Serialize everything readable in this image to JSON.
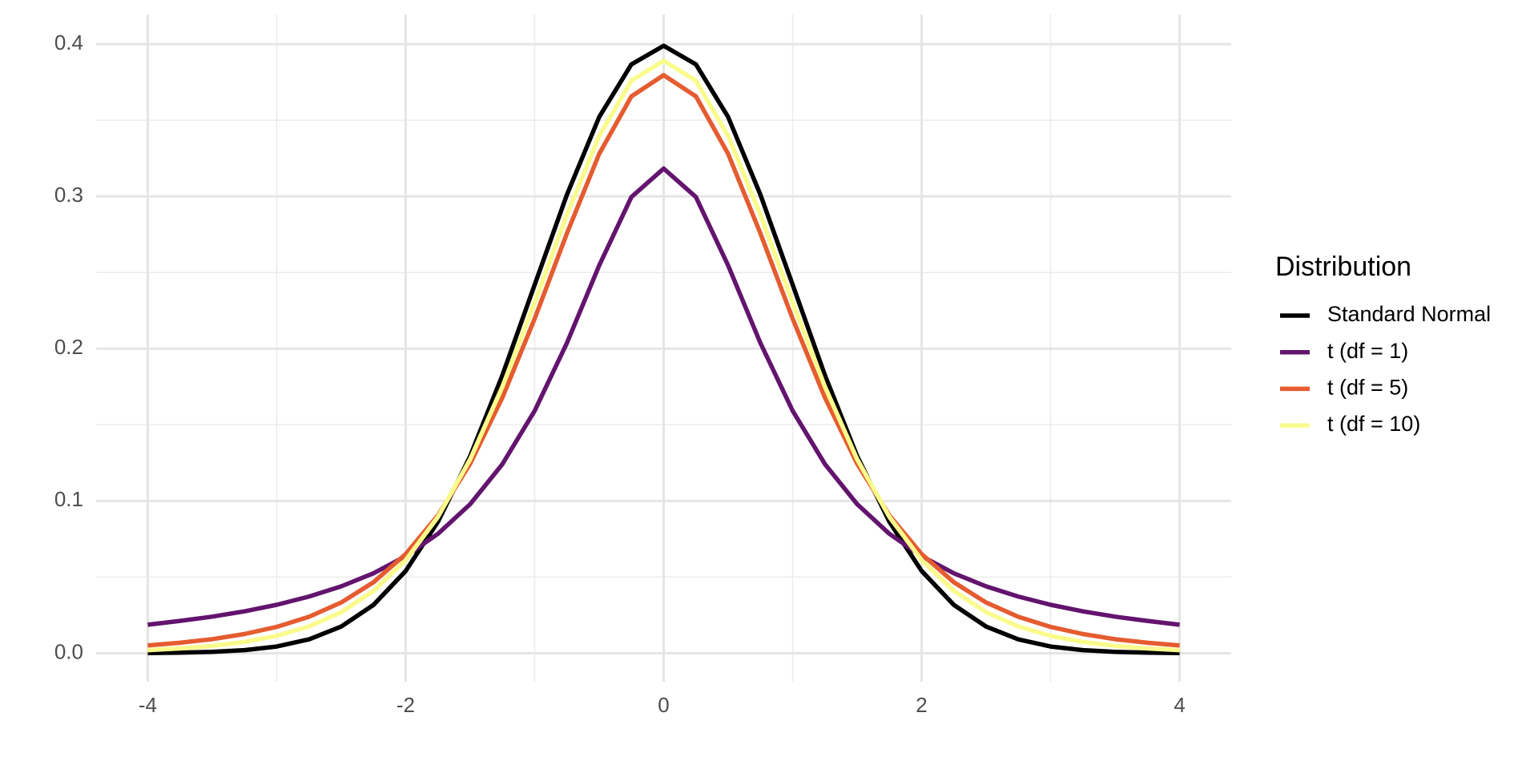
{
  "chart_data": {
    "type": "line",
    "x": [
      -4,
      -3.75,
      -3.5,
      -3.25,
      -3,
      -2.75,
      -2.5,
      -2.25,
      -2,
      -1.75,
      -1.5,
      -1.25,
      -1,
      -0.75,
      -0.5,
      -0.25,
      0,
      0.25,
      0.5,
      0.75,
      1,
      1.25,
      1.5,
      1.75,
      2,
      2.25,
      2.5,
      2.75,
      3,
      3.25,
      3.5,
      3.75,
      4
    ],
    "series": [
      {
        "name": "Standard Normal",
        "color": "#000000",
        "values": [
          0.0001,
          0.0004,
          0.0009,
          0.002,
          0.0044,
          0.0091,
          0.0175,
          0.0317,
          0.054,
          0.0863,
          0.1295,
          0.1826,
          0.242,
          0.3011,
          0.3521,
          0.3867,
          0.3989,
          0.3867,
          0.3521,
          0.3011,
          0.242,
          0.1826,
          0.1295,
          0.0863,
          0.054,
          0.0317,
          0.0175,
          0.0091,
          0.0044,
          0.002,
          0.0009,
          0.0004,
          0.0001
        ]
      },
      {
        "name": "t (df = 1)",
        "color": "#63146e",
        "values": [
          0.0187,
          0.0212,
          0.024,
          0.0275,
          0.0318,
          0.0372,
          0.0439,
          0.0525,
          0.0637,
          0.0784,
          0.0979,
          0.1242,
          0.1592,
          0.2037,
          0.2546,
          0.2996,
          0.3183,
          0.2996,
          0.2546,
          0.2037,
          0.1592,
          0.1242,
          0.0979,
          0.0784,
          0.0637,
          0.0525,
          0.0439,
          0.0372,
          0.0318,
          0.0275,
          0.024,
          0.0212,
          0.0187
        ]
      },
      {
        "name": "t (df = 5)",
        "color": "#e55c30",
        "values": [
          0.0051,
          0.0069,
          0.0092,
          0.0126,
          0.0173,
          0.0239,
          0.0333,
          0.0466,
          0.0651,
          0.0905,
          0.1245,
          0.1679,
          0.2197,
          0.2757,
          0.3279,
          0.3657,
          0.3796,
          0.3657,
          0.3279,
          0.2757,
          0.2197,
          0.1679,
          0.1245,
          0.0905,
          0.0651,
          0.0466,
          0.0333,
          0.0239,
          0.0173,
          0.0126,
          0.0092,
          0.0069,
          0.0051
        ]
      },
      {
        "name": "t (df = 10)",
        "color": "#fafb8c",
        "values": [
          0.002,
          0.0031,
          0.0048,
          0.0074,
          0.0114,
          0.0176,
          0.0269,
          0.0409,
          0.0611,
          0.0895,
          0.1274,
          0.1751,
          0.2304,
          0.288,
          0.3397,
          0.376,
          0.3891,
          0.376,
          0.3397,
          0.288,
          0.2304,
          0.1751,
          0.1274,
          0.0895,
          0.0611,
          0.0409,
          0.0269,
          0.0176,
          0.0114,
          0.0074,
          0.0048,
          0.0031,
          0.002
        ]
      }
    ],
    "xlim": [
      -4.4,
      4.4
    ],
    "xticks": [
      -4,
      -2,
      0,
      2,
      4
    ],
    "ylim": [
      -0.0187,
      0.4195
    ],
    "yticks": [
      {
        "value": 0,
        "label": "0.0"
      },
      0.1,
      0.2,
      0.3,
      0.4
    ],
    "grid": true,
    "minor_grid": true,
    "legend_title": "Distribution",
    "legend": "right"
  }
}
